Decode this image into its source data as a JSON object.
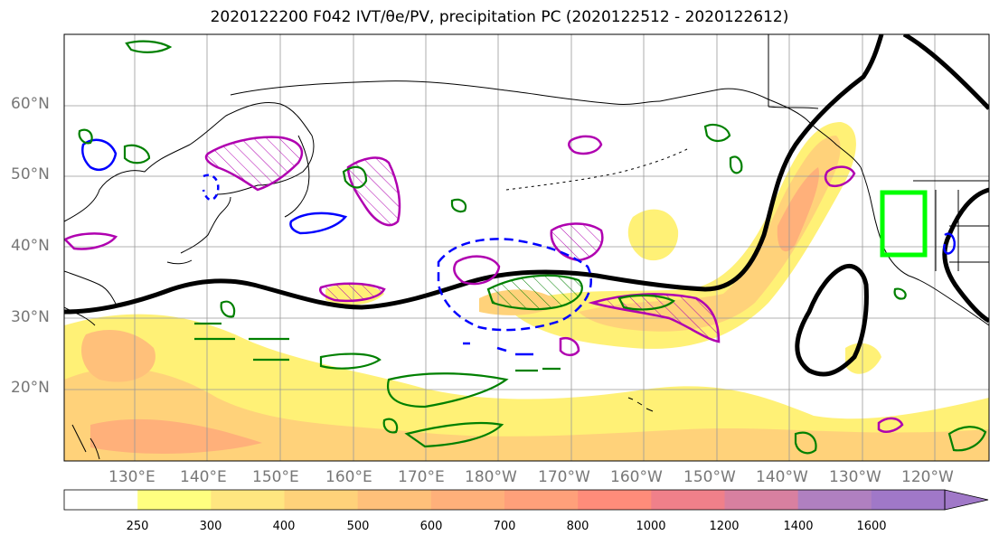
{
  "title": "2020122200 F042 IVT/θe/PV, precipitation PC (2020122512 - 2020122612)",
  "lat_labels": [
    "60°N",
    "50°N",
    "40°N",
    "30°N",
    "20°N"
  ],
  "lon_labels": [
    "130°E",
    "140°E",
    "150°E",
    "160°E",
    "170°E",
    "180°W",
    "170°W",
    "160°W",
    "150°W",
    "140°W",
    "130°W",
    "120°W"
  ],
  "colorbar": {
    "levels": [
      "250",
      "300",
      "400",
      "500",
      "600",
      "700",
      "800",
      "1000",
      "1200",
      "1400",
      "1600"
    ],
    "colors": [
      "#ffffff",
      "#ffff80",
      "#ffe680",
      "#ffd27a",
      "#ffc07a",
      "#ffb07a",
      "#ffa07a",
      "#ff8c7a",
      "#f0808a",
      "#d880a0",
      "#b080c0",
      "#a078c8"
    ]
  },
  "colors": {
    "ivt_fill_light": "#fff176",
    "ivt_fill_mid": "#ffcc80",
    "ivt_fill_dark": "#ffa07a",
    "theta_contour": "#000000",
    "pv_positive": "#b000b0",
    "pv_negative": "#0000ff",
    "precip_pc": "#008000",
    "target_box": "#00ff00",
    "coastline": "#000000",
    "grid": "#999999"
  }
}
